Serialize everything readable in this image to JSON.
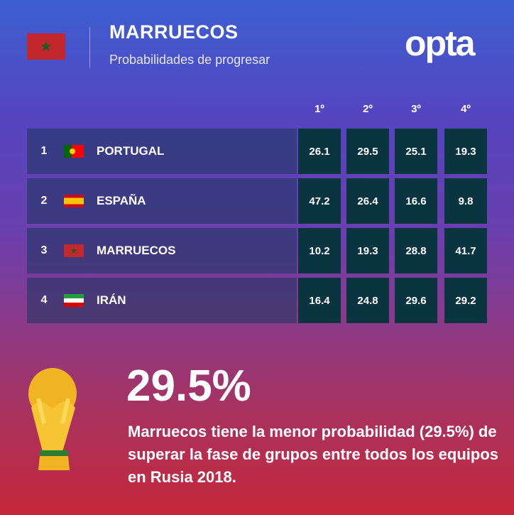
{
  "header": {
    "title": "MARRUECOS",
    "subtitle": "Probabilidades de progresar",
    "logo": "opta",
    "flag": "morocco-flag"
  },
  "table": {
    "columns": [
      "1º",
      "2º",
      "3º",
      "4º"
    ],
    "rows": [
      {
        "rank": "1",
        "team": "PORTUGAL",
        "flag": "portugal-flag",
        "values": [
          "26.1",
          "29.5",
          "25.1",
          "19.3"
        ]
      },
      {
        "rank": "2",
        "team": "ESPAÑA",
        "flag": "spain-flag",
        "values": [
          "47.2",
          "26.4",
          "16.6",
          "9.8"
        ]
      },
      {
        "rank": "3",
        "team": "MARRUECOS",
        "flag": "morocco-flag",
        "values": [
          "10.2",
          "19.3",
          "28.8",
          "41.7"
        ]
      },
      {
        "rank": "4",
        "team": "IRÁN",
        "flag": "iran-flag",
        "values": [
          "16.4",
          "24.8",
          "29.6",
          "29.2"
        ]
      }
    ]
  },
  "highlight": {
    "value": "29.5%",
    "text": "Marruecos tiene la menor probabilidad (29.5%) de superar la fase de grupos entre todos los equipos en Rusia 2018.",
    "icon": "world-cup-trophy-icon"
  },
  "colors": {
    "number_cell": "#0a3540",
    "top": "#3c5fd2",
    "bottom": "#c5283a"
  }
}
